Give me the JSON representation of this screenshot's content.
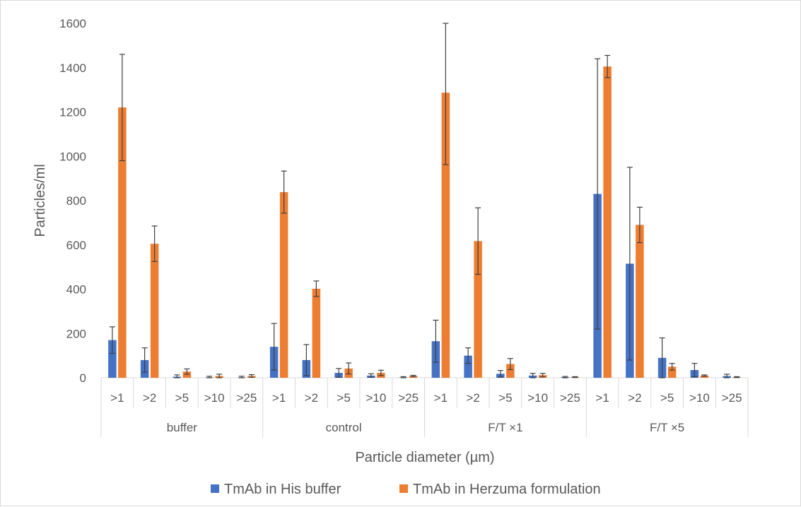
{
  "chart_data": {
    "type": "bar",
    "title": "",
    "xlabel": "Particle diameter (µm)",
    "ylabel": "Particles/ml",
    "ylim": [
      0,
      1600
    ],
    "yticks": [
      0,
      200,
      400,
      600,
      800,
      1000,
      1200,
      1400,
      1600
    ],
    "grid": false,
    "legend_position": "bottom",
    "groups": [
      "buffer",
      "control",
      "F/T ×1",
      "F/T ×5"
    ],
    "subcategories": [
      ">1",
      ">2",
      ">5",
      ">10",
      ">25"
    ],
    "series": [
      {
        "name": "TmAb in His buffer",
        "color": "#4472C4",
        "values": [
          170,
          80,
          5,
          2,
          2,
          140,
          80,
          22,
          10,
          2,
          165,
          100,
          18,
          10,
          3,
          830,
          515,
          90,
          35,
          8
        ],
        "errors": [
          60,
          55,
          8,
          5,
          5,
          105,
          70,
          20,
          8,
          3,
          95,
          35,
          15,
          10,
          3,
          610,
          435,
          90,
          30,
          8
        ]
      },
      {
        "name": "TmAb in Herzuma formulation",
        "color": "#ED7D31",
        "values": [
          1220,
          605,
          28,
          8,
          8,
          838,
          402,
          42,
          22,
          8,
          1287,
          617,
          62,
          12,
          3,
          1405,
          690,
          50,
          10,
          3
        ],
        "errors": [
          240,
          80,
          12,
          8,
          6,
          95,
          35,
          25,
          12,
          3,
          325,
          150,
          25,
          8,
          2,
          50,
          80,
          15,
          3,
          2
        ]
      }
    ]
  }
}
